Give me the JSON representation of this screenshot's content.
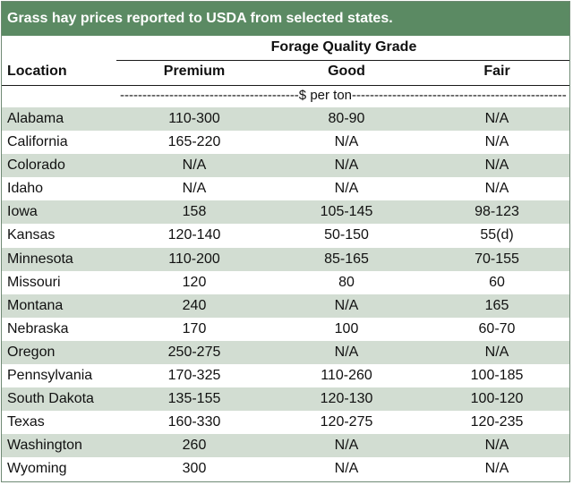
{
  "title": "Grass hay prices reported to USDA from selected states.",
  "group_header": "Forage Quality Grade",
  "columns": {
    "location": "Location",
    "premium": "Premium",
    "good": "Good",
    "fair": "Fair"
  },
  "units_line": "----------------------------------------$ per ton------------------------------------------------",
  "rows": [
    {
      "location": "Alabama",
      "premium": "110-300",
      "good": "80-90",
      "fair": "N/A"
    },
    {
      "location": "California",
      "premium": "165-220",
      "good": "N/A",
      "fair": "N/A"
    },
    {
      "location": "Colorado",
      "premium": "N/A",
      "good": "N/A",
      "fair": "N/A"
    },
    {
      "location": "Idaho",
      "premium": "N/A",
      "good": "N/A",
      "fair": "N/A"
    },
    {
      "location": "Iowa",
      "premium": "158",
      "good": "105-145",
      "fair": "98-123"
    },
    {
      "location": "Kansas",
      "premium": "120-140",
      "good": "50-150",
      "fair": "55(d)"
    },
    {
      "location": "Minnesota",
      "premium": "110-200",
      "good": "85-165",
      "fair": "70-155"
    },
    {
      "location": "Missouri",
      "premium": "120",
      "good": "80",
      "fair": "60"
    },
    {
      "location": "Montana",
      "premium": "240",
      "good": "N/A",
      "fair": "165"
    },
    {
      "location": "Nebraska",
      "premium": "170",
      "good": "100",
      "fair": "60-70"
    },
    {
      "location": "Oregon",
      "premium": "250-275",
      "good": "N/A",
      "fair": "N/A"
    },
    {
      "location": "Pennsylvania",
      "premium": "170-325",
      "good": "110-260",
      "fair": "100-185"
    },
    {
      "location": "South Dakota",
      "premium": "135-155",
      "good": "120-130",
      "fair": "100-120"
    },
    {
      "location": "Texas",
      "premium": "160-330",
      "good": "120-275",
      "fair": "120-235"
    },
    {
      "location": "Washington",
      "premium": "260",
      "good": "N/A",
      "fair": "N/A"
    },
    {
      "location": "Wyoming",
      "premium": "300",
      "good": "N/A",
      "fair": "N/A"
    }
  ],
  "colors": {
    "title_bg": "#5b8a63",
    "row_shade": "#d2ddd2",
    "border": "#6f8a74"
  }
}
